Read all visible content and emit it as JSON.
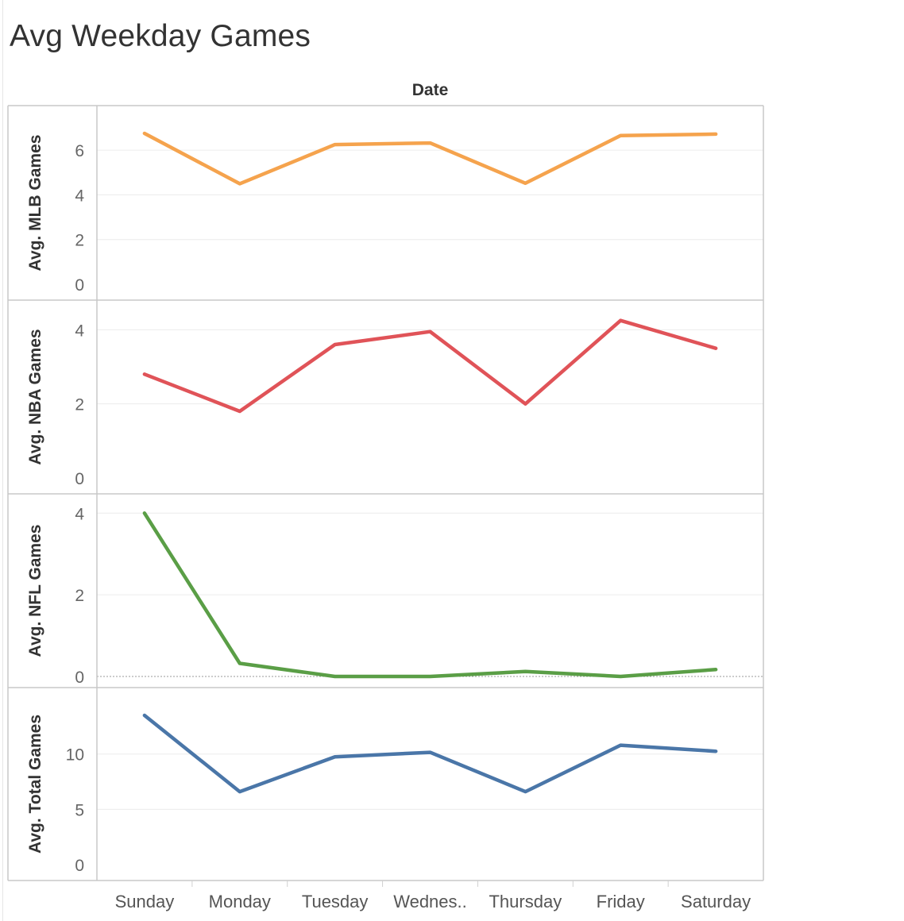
{
  "title": "Avg Weekday Games",
  "chart_data": {
    "type": "line",
    "column_header": "Date",
    "categories": [
      "Sunday",
      "Monday",
      "Tuesday",
      "Wednes..",
      "Thursday",
      "Friday",
      "Saturday"
    ],
    "panels": [
      {
        "ylabel": "Avg. MLB Games",
        "color": "#f5a34d",
        "ylim": [
          0,
          7
        ],
        "ticks": [
          0,
          2,
          4,
          6
        ],
        "values": [
          6.75,
          4.5,
          6.25,
          6.32,
          4.52,
          6.65,
          6.72
        ]
      },
      {
        "ylabel": "Avg. NBA Games",
        "color": "#e05358",
        "ylim": [
          0,
          4.2
        ],
        "ticks": [
          0,
          2,
          4
        ],
        "values": [
          2.8,
          1.8,
          3.6,
          3.95,
          2.0,
          4.25,
          3.5
        ]
      },
      {
        "ylabel": "Avg. NFL Games",
        "color": "#5a9e46",
        "ylim": [
          0,
          4.2
        ],
        "ticks": [
          0,
          2,
          4
        ],
        "values": [
          4.0,
          0.32,
          0.0,
          0.0,
          0.12,
          0.0,
          0.17
        ],
        "zero_line": true
      },
      {
        "ylabel": "Avg. Total Games",
        "color": "#4a76a8",
        "ylim": [
          0,
          14
        ],
        "ticks": [
          0,
          5,
          10
        ],
        "values": [
          13.5,
          6.6,
          9.75,
          10.15,
          6.6,
          10.8,
          10.25
        ]
      }
    ],
    "grid": true,
    "legend": "none"
  }
}
